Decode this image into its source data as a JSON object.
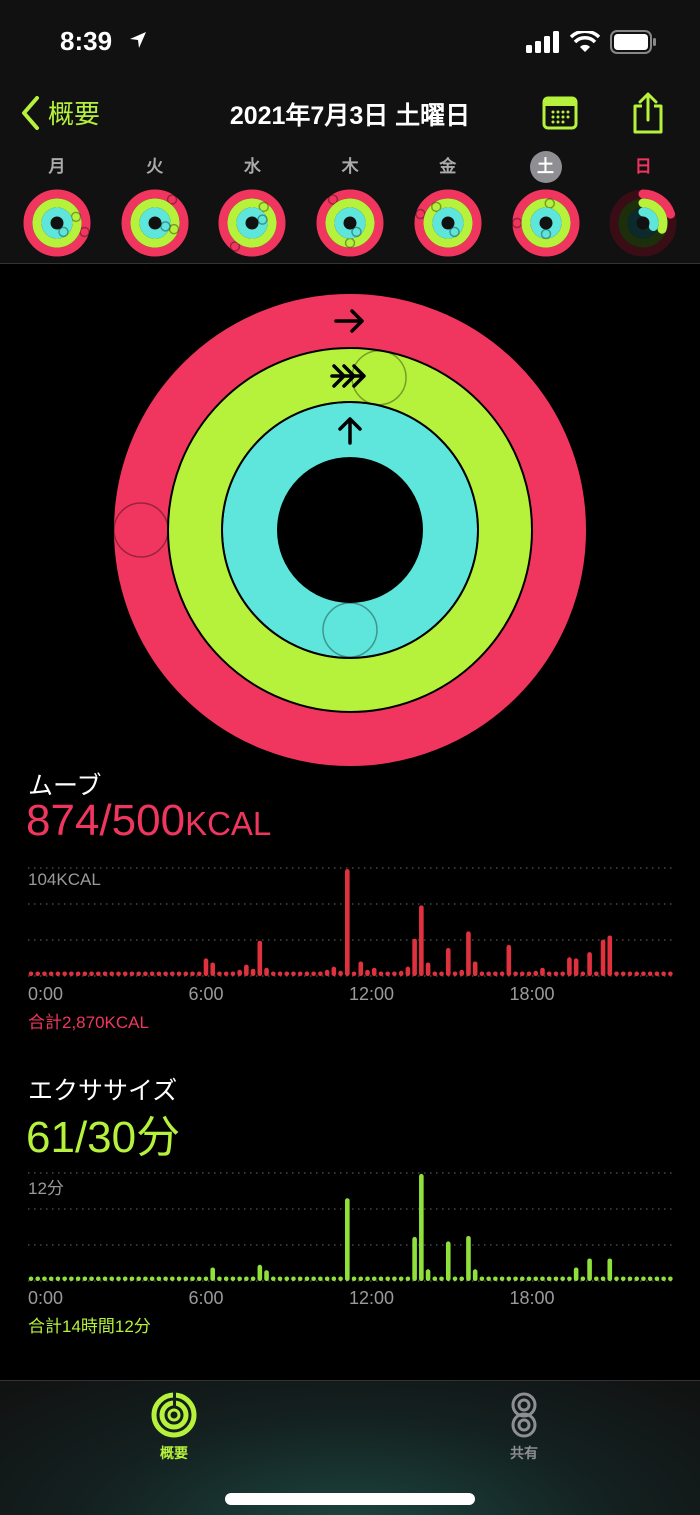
{
  "status": {
    "time": "8:39",
    "icons": [
      "location-arrow-icon",
      "signal-icon",
      "wifi-icon",
      "battery-icon"
    ]
  },
  "nav": {
    "back_label": "概要",
    "title": "2021年7月3日 土曜日",
    "calendar_icon": "calendar-icon",
    "share_icon": "share-icon"
  },
  "week": [
    {
      "label": "月",
      "move": 1.3,
      "exercise": 1.2,
      "stand": 1.4
    },
    {
      "label": "火",
      "move": 1.1,
      "exercise": 1.3,
      "stand": 1.3
    },
    {
      "label": "水",
      "move": 1.6,
      "exercise": 1.1,
      "stand": 1.2
    },
    {
      "label": "木",
      "move": 1.9,
      "exercise": 1.5,
      "stand": 1.4
    },
    {
      "label": "金",
      "move": 1.8,
      "exercise": 1.9,
      "stand": 1.4
    },
    {
      "label": "土",
      "move": 1.75,
      "exercise": 2.03,
      "stand": 1.5,
      "selected": true
    },
    {
      "label": "日",
      "move": 0.2,
      "exercise": 0.3,
      "stand": 0.3,
      "today": true
    }
  ],
  "rings": {
    "move_progress": 1.75,
    "exercise_progress": 2.03,
    "stand_progress": 1.5
  },
  "colors": {
    "move": "#f0365e",
    "exercise": "#b6f23c",
    "stand": "#5fe6dc",
    "accent": "#b6f23c"
  },
  "move": {
    "title": "ムーブ",
    "value": "874/500",
    "unit": "KCAL",
    "total": "合計2,870KCAL"
  },
  "exercise": {
    "title": "エクササイズ",
    "value": "61/30分",
    "total": "合計14時間12分"
  },
  "chart_data": [
    {
      "type": "bar",
      "name": "move",
      "ylabel": "104KCAL",
      "ylim": [
        0,
        104
      ],
      "xticks": [
        "0:00",
        "6:00",
        "12:00",
        "18:00"
      ],
      "values": [
        0,
        0,
        0,
        0,
        0,
        0,
        0,
        0,
        0,
        0,
        0,
        0,
        0,
        0,
        0,
        0,
        0,
        0,
        0,
        0,
        0,
        0,
        0,
        0,
        0,
        0,
        17,
        13,
        0,
        0,
        0,
        6,
        11,
        7,
        34,
        8,
        0,
        0,
        0,
        0,
        3,
        0,
        0,
        0,
        6,
        9,
        5,
        103,
        0,
        14,
        6,
        8,
        0,
        0,
        3,
        5,
        9,
        36,
        68,
        13,
        3,
        0,
        27,
        4,
        6,
        43,
        14,
        2,
        0,
        3,
        0,
        30,
        4,
        4,
        4,
        5,
        8,
        4,
        3,
        0,
        18,
        17,
        4,
        23,
        0,
        35,
        39,
        0,
        0,
        0,
        0,
        0,
        0,
        0,
        0,
        0
      ]
    },
    {
      "type": "bar",
      "name": "exercise",
      "ylabel": "12分",
      "ylim": [
        0,
        12
      ],
      "xticks": [
        "0:00",
        "6:00",
        "12:00",
        "18:00"
      ],
      "values": [
        0,
        0,
        0,
        0,
        0,
        0,
        0,
        0,
        0,
        0,
        0,
        0,
        0,
        0,
        0,
        0,
        0,
        0,
        0,
        0,
        0,
        0,
        0,
        0,
        0,
        0,
        0.5,
        1.5,
        0,
        0,
        0,
        0,
        0.5,
        0,
        1.8,
        1.2,
        0,
        0,
        0,
        0,
        0,
        0,
        0,
        0,
        0,
        0,
        0,
        9.2,
        0,
        0,
        0,
        0,
        0,
        0,
        0,
        0,
        0.5,
        4.9,
        11.9,
        1.3,
        0,
        0,
        4.4,
        0,
        0,
        5,
        1.3,
        0,
        0,
        0,
        0,
        0.5,
        0,
        0,
        0,
        0,
        0,
        0,
        0,
        0,
        0,
        1.5,
        0,
        2.5,
        0,
        0,
        2.5,
        0,
        0,
        0,
        0,
        0,
        0,
        0,
        0,
        0
      ]
    }
  ],
  "tabs": [
    {
      "label": "概要",
      "icon": "activity-rings-icon",
      "active": true
    },
    {
      "label": "共有",
      "icon": "sharing-icon",
      "active": false
    }
  ]
}
